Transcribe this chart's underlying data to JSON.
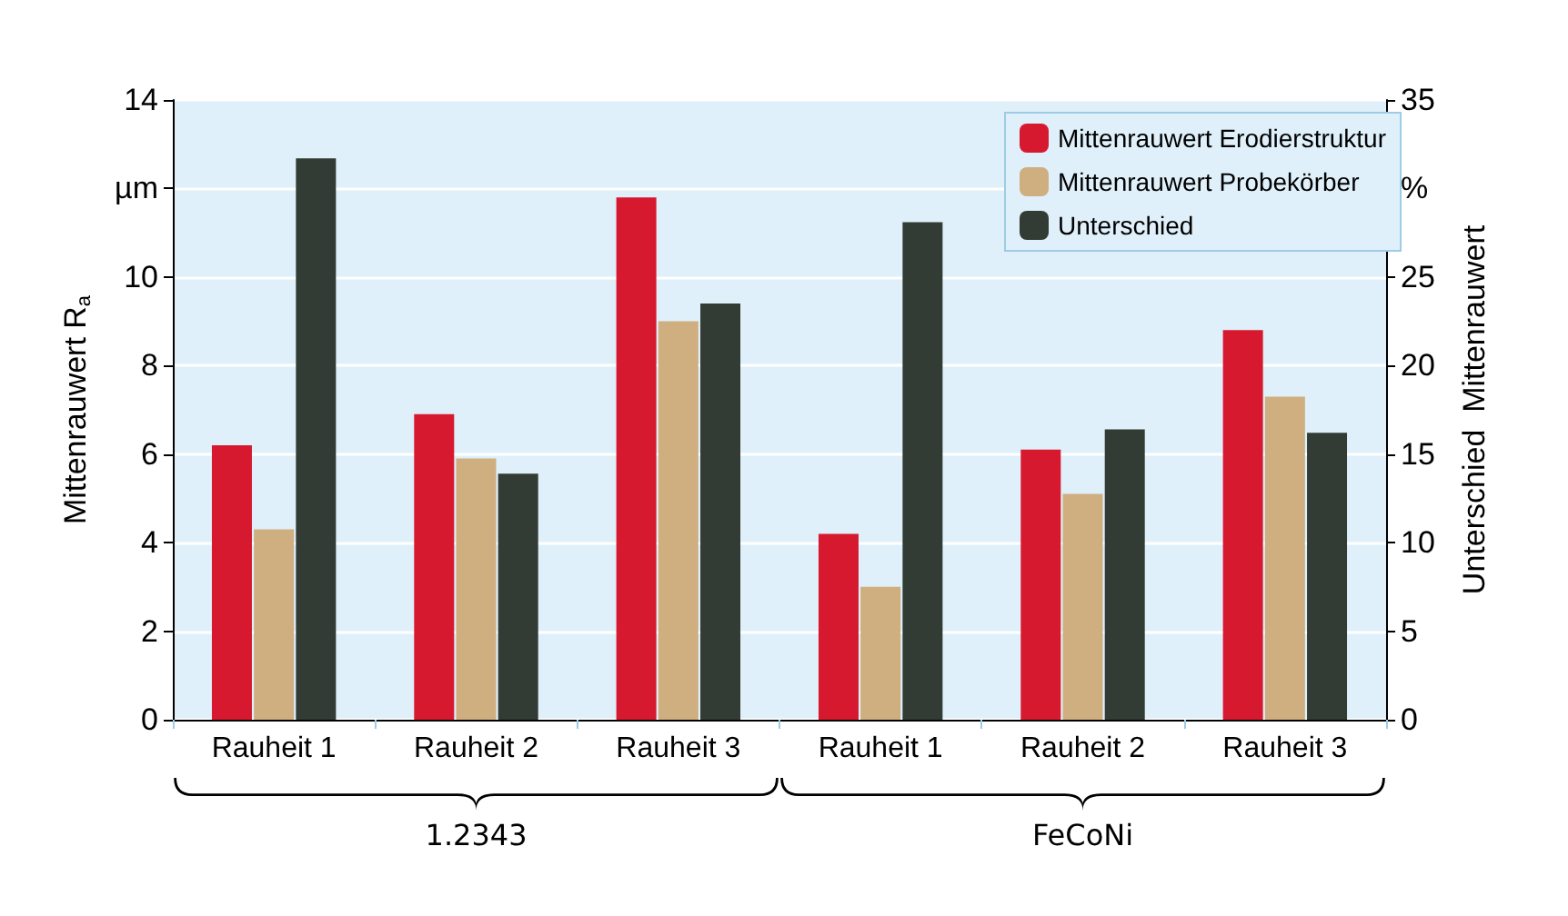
{
  "chart_data": {
    "type": "bar",
    "categories": [
      "Rauheit 1",
      "Rauheit 2",
      "Rauheit 3",
      "Rauheit 1",
      "Rauheit 2",
      "Rauheit 3"
    ],
    "series": [
      {
        "name": "Mittenrauwert Erodierstruktur",
        "color": "#d7192f",
        "values": [
          6.2,
          6.9,
          11.8,
          4.2,
          6.1,
          8.8
        ]
      },
      {
        "name": "Mittenrauwert Probekörber",
        "color": "#cfae7f",
        "values": [
          4.3,
          5.9,
          9.0,
          3.0,
          5.1,
          7.3
        ]
      },
      {
        "name": "Unterschied",
        "color": "#323c35",
        "axis": "y2",
        "values": [
          31.7,
          13.9,
          23.5,
          28.1,
          16.4,
          16.2
        ]
      }
    ],
    "ylabel": "Mittenrauwert R$_{a}$",
    "y2label": "Unterschied  Mittenrauwert",
    "ylim": [
      0,
      14
    ],
    "yticks": [
      0,
      2,
      4,
      6,
      8,
      10,
      {
        "value": 12,
        "label": "µm"
      },
      14
    ],
    "y2lim": [
      0,
      35
    ],
    "y2ticks": [
      0,
      5,
      10,
      15,
      20,
      25,
      {
        "value": 30,
        "label": "%"
      },
      35
    ],
    "annotations": [
      "1.2343",
      "FeCoNi"
    ],
    "grid": "y",
    "legend": "top right"
  }
}
